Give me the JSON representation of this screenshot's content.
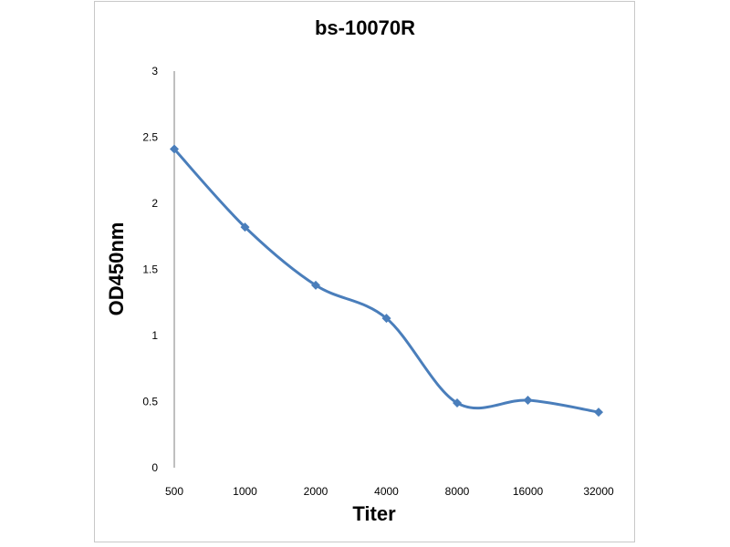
{
  "chart_data": {
    "type": "line",
    "title": "bs-10070R",
    "xlabel": "Titer",
    "ylabel": "OD450nm",
    "categories": [
      "500",
      "1000",
      "2000",
      "4000",
      "8000",
      "16000",
      "32000"
    ],
    "series": [
      {
        "values": [
          2.41,
          1.82,
          1.38,
          1.13,
          0.49,
          0.51,
          0.42
        ]
      }
    ],
    "ylim": [
      0,
      3
    ],
    "yticks": [
      "0",
      "0.5",
      "1",
      "1.5",
      "2",
      "2.5",
      "3"
    ],
    "grid": false,
    "line_color": "#4a7ebb",
    "smooth": true
  }
}
